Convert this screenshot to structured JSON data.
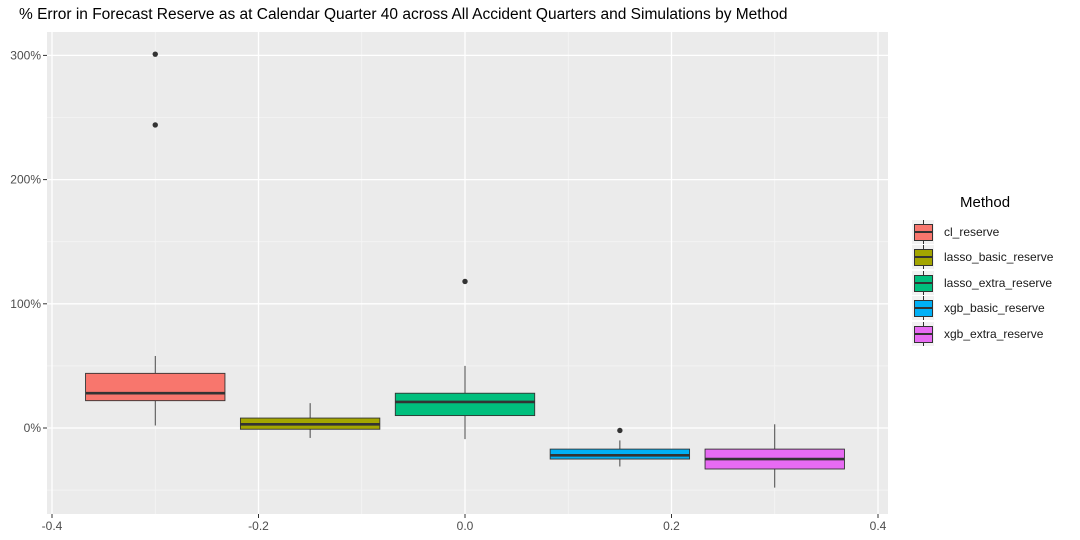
{
  "chart_data": {
    "type": "boxplot",
    "title": "% Error in Forecast Reserve as at Calendar Quarter 40 across All Accident Quarters and Simulations by Method",
    "xlabel": "",
    "ylabel": "",
    "xlim": [
      -0.4,
      0.4
    ],
    "ylim": [
      -0.65,
      3.2
    ],
    "x_ticks": [
      -0.4,
      -0.2,
      0.0,
      0.2,
      0.4
    ],
    "x_tick_labels": [
      "-0.4",
      "-0.2",
      "0.0",
      "0.2",
      "0.4"
    ],
    "y_ticks": [
      0,
      1,
      2,
      3
    ],
    "y_tick_labels": [
      "0%",
      "100%",
      "200%",
      "300%"
    ],
    "grid": true,
    "legend_title": "Method",
    "legend_position": "right",
    "series": [
      {
        "name": "cl_reserve",
        "color": "#F8766D",
        "x_center": -0.3,
        "half_width": 0.0675,
        "whisker_low": 0.02,
        "q1": 0.22,
        "median": 0.28,
        "q3": 0.44,
        "whisker_high": 0.58,
        "outliers": [
          2.44,
          3.01
        ]
      },
      {
        "name": "lasso_basic_reserve",
        "color": "#A3A500",
        "x_center": -0.15,
        "half_width": 0.0675,
        "whisker_low": -0.08,
        "q1": -0.01,
        "median": 0.03,
        "q3": 0.08,
        "whisker_high": 0.2,
        "outliers": []
      },
      {
        "name": "lasso_extra_reserve",
        "color": "#00BF7D",
        "x_center": 0.0,
        "half_width": 0.0675,
        "whisker_low": -0.09,
        "q1": 0.1,
        "median": 0.21,
        "q3": 0.28,
        "whisker_high": 0.5,
        "outliers": [
          1.18
        ]
      },
      {
        "name": "xgb_basic_reserve",
        "color": "#00B0F6",
        "x_center": 0.15,
        "half_width": 0.0675,
        "whisker_low": -0.31,
        "q1": -0.25,
        "median": -0.22,
        "q3": -0.17,
        "whisker_high": -0.1,
        "outliers": [
          -0.02
        ]
      },
      {
        "name": "xgb_extra_reserve",
        "color": "#E76BF3",
        "x_center": 0.3,
        "half_width": 0.0675,
        "whisker_low": -0.48,
        "q1": -0.33,
        "median": -0.25,
        "q3": -0.17,
        "whisker_high": 0.03,
        "outliers": []
      }
    ]
  }
}
